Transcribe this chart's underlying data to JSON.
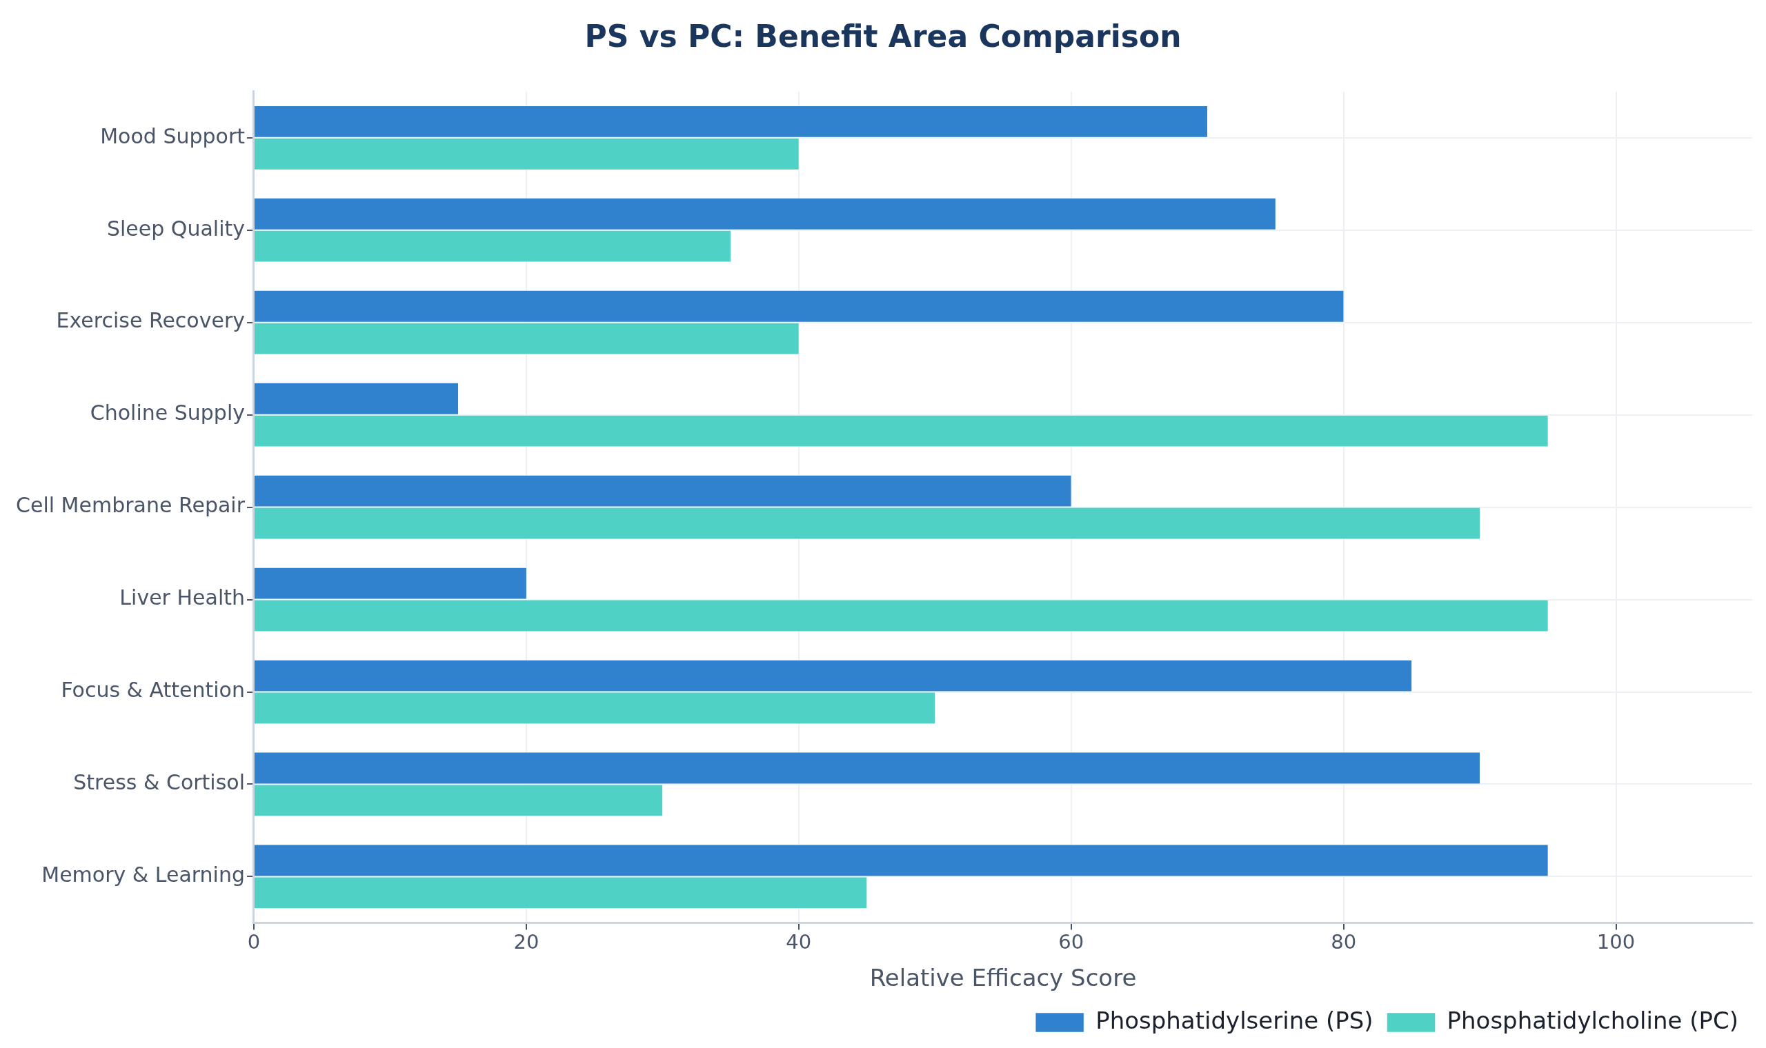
{
  "chart_data": {
    "type": "bar",
    "orientation": "horizontal",
    "title": "PS vs PC: Benefit Area Comparison",
    "xlabel": "Relative Efficacy Score",
    "categories": [
      "Mood Support",
      "Sleep Quality",
      "Exercise Recovery",
      "Choline Supply",
      "Cell Membrane Repair",
      "Liver Health",
      "Focus & Attention",
      "Stress & Cortisol",
      "Memory & Learning"
    ],
    "series": [
      {
        "name": "Phosphatidylserine (PS)",
        "color": "#3182ce",
        "values": [
          70,
          75,
          80,
          15,
          60,
          20,
          85,
          90,
          95
        ]
      },
      {
        "name": "Phosphatidylcholine (PC)",
        "color": "#4fd1c5",
        "values": [
          40,
          35,
          40,
          95,
          90,
          95,
          50,
          30,
          45
        ]
      }
    ],
    "xlim": [
      0,
      110
    ],
    "xticks": [
      0,
      20,
      40,
      60,
      80,
      100
    ],
    "grid": true,
    "legend": "bottom right"
  }
}
